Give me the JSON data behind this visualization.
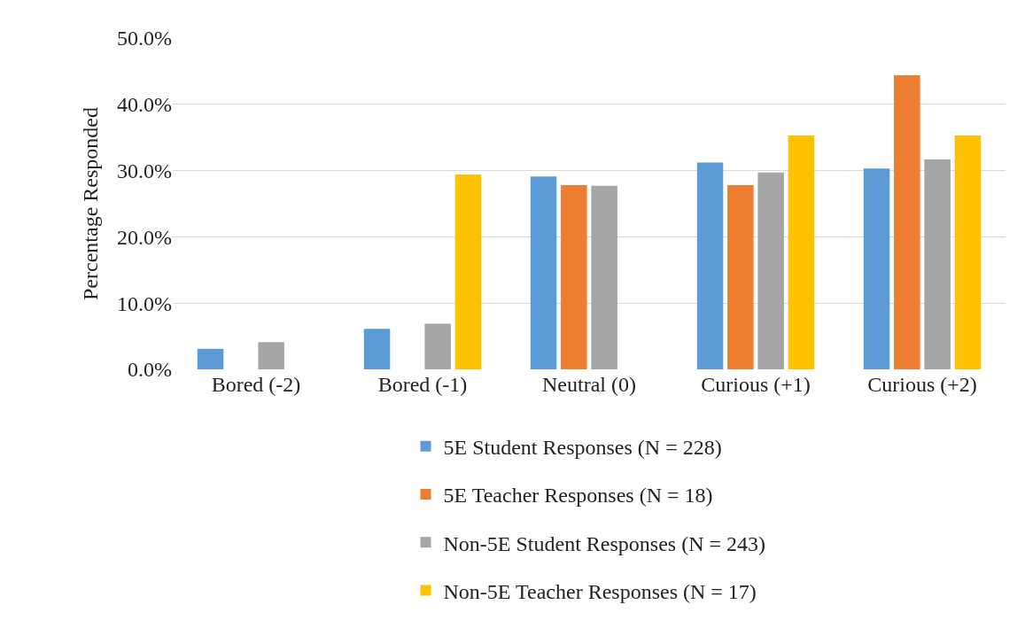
{
  "chart_data": {
    "type": "bar",
    "ylabel": "Percentage Responded",
    "categories": [
      "Bored (-2)",
      "Bored (-1)",
      "Neutral (0)",
      "Curious (+1)",
      "Curious (+2)"
    ],
    "series": [
      {
        "name": "5E Student Responses (N = 228)",
        "color": "#5b9bd5",
        "values": [
          3.1,
          6.1,
          29.1,
          31.2,
          30.3
        ]
      },
      {
        "name": "5E Teacher Responses (N = 18)",
        "color": "#ed7d31",
        "values": [
          0,
          0,
          27.8,
          27.8,
          44.4
        ]
      },
      {
        "name": "Non-5E Student Responses (N = 243)",
        "color": "#a5a5a5",
        "values": [
          4.1,
          6.9,
          27.7,
          29.7,
          31.7
        ]
      },
      {
        "name": "Non-5E Teacher Responses (N = 17)",
        "color": "#ffc000",
        "values": [
          0,
          29.4,
          0,
          35.3,
          35.3
        ]
      }
    ],
    "ylim": [
      0,
      50
    ],
    "yticks": [
      {
        "value": 0,
        "label": "0.0%"
      },
      {
        "value": 10,
        "label": "10.0%"
      },
      {
        "value": 20,
        "label": "20.0%"
      },
      {
        "value": 30,
        "label": "30.0%"
      },
      {
        "value": 40,
        "label": "40.0%"
      },
      {
        "value": 50,
        "label": "50.0%"
      }
    ],
    "grid": "y",
    "legend": "bottom"
  }
}
